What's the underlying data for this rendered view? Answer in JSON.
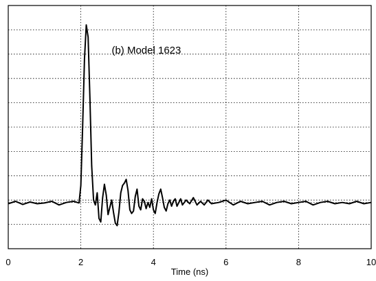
{
  "chart_data": {
    "type": "line",
    "title": "",
    "annotation": "(b) Model 1623",
    "xlabel": "Time  (ns)",
    "ylabel": "",
    "xlim": [
      0,
      10
    ],
    "ylim": [
      -4,
      6
    ],
    "x_ticks": [
      0,
      2,
      4,
      6,
      8,
      10
    ],
    "x_tick_labels": [
      "0",
      "2",
      "4",
      "6",
      "8",
      "10"
    ],
    "x_gridlines": [
      2,
      4,
      6,
      8
    ],
    "y_gridlines": [
      -3,
      -2,
      -1,
      0,
      1,
      2,
      3,
      4,
      5
    ],
    "grid": true,
    "legend": "none",
    "series": [
      {
        "x": [
          0,
          0.2,
          0.4,
          0.6,
          0.8,
          1.0,
          1.2,
          1.4,
          1.6,
          1.8,
          1.95,
          2.0,
          2.05,
          2.1,
          2.15,
          2.2,
          2.25,
          2.3,
          2.35,
          2.4,
          2.45,
          2.5,
          2.55,
          2.6,
          2.65,
          2.7,
          2.75,
          2.8,
          2.85,
          2.9,
          2.95,
          3.0,
          3.05,
          3.1,
          3.15,
          3.2,
          3.25,
          3.3,
          3.35,
          3.4,
          3.45,
          3.5,
          3.55,
          3.6,
          3.65,
          3.7,
          3.75,
          3.8,
          3.85,
          3.9,
          3.95,
          4.0,
          4.05,
          4.1,
          4.15,
          4.2,
          4.25,
          4.3,
          4.35,
          4.4,
          4.45,
          4.5,
          4.55,
          4.6,
          4.65,
          4.7,
          4.75,
          4.8,
          4.9,
          5.0,
          5.1,
          5.2,
          5.3,
          5.4,
          5.5,
          5.6,
          5.8,
          6.0,
          6.2,
          6.4,
          6.6,
          6.8,
          7.0,
          7.2,
          7.4,
          7.6,
          7.8,
          8.0,
          8.2,
          8.4,
          8.6,
          8.8,
          9.0,
          9.2,
          9.4,
          9.6,
          9.8,
          10.0
        ],
        "y": [
          -2.15,
          -2.05,
          -2.18,
          -2.08,
          -2.15,
          -2.12,
          -2.05,
          -2.2,
          -2.1,
          -2.05,
          -2.12,
          -1.4,
          1.0,
          3.8,
          5.2,
          4.7,
          2.2,
          -0.6,
          -2.0,
          -2.2,
          -1.7,
          -2.75,
          -2.9,
          -1.9,
          -1.35,
          -1.8,
          -2.6,
          -2.3,
          -2.0,
          -2.5,
          -2.95,
          -3.05,
          -2.5,
          -1.7,
          -1.4,
          -1.3,
          -1.15,
          -1.6,
          -2.4,
          -2.55,
          -2.45,
          -1.85,
          -1.55,
          -2.25,
          -2.4,
          -1.95,
          -2.05,
          -2.35,
          -2.1,
          -2.3,
          -1.95,
          -2.4,
          -2.55,
          -2.1,
          -1.75,
          -1.55,
          -1.9,
          -2.3,
          -2.45,
          -2.15,
          -2.0,
          -2.25,
          -2.05,
          -1.95,
          -2.25,
          -2.1,
          -1.95,
          -2.2,
          -2.0,
          -2.15,
          -1.9,
          -2.2,
          -2.05,
          -2.2,
          -2.0,
          -2.15,
          -2.1,
          -2.0,
          -2.2,
          -2.05,
          -2.15,
          -2.1,
          -2.05,
          -2.2,
          -2.1,
          -2.05,
          -2.15,
          -2.1,
          -2.05,
          -2.2,
          -2.1,
          -2.05,
          -2.15,
          -2.1,
          -2.15,
          -2.05,
          -2.15,
          -2.1
        ]
      }
    ],
    "baseline_level": -2.1
  }
}
